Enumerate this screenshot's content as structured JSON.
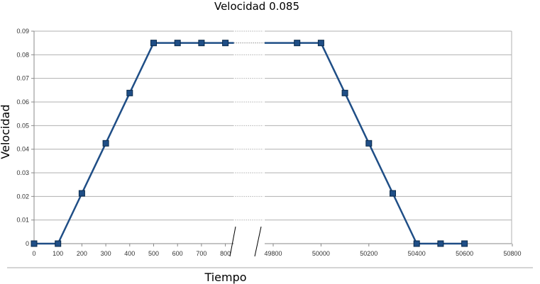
{
  "chart_data": {
    "type": "line",
    "title": "Velocidad 0.085",
    "xlabel": "Tiempo",
    "ylabel": "Velocidad",
    "ylim": [
      0,
      0.09
    ],
    "y_ticks": [
      "0",
      "0.01",
      "0.02",
      "0.03",
      "0.04",
      "0.05",
      "0.06",
      "0.07",
      "0.08",
      "0.09"
    ],
    "x_ticks": [
      "0",
      "100",
      "200",
      "300",
      "400",
      "500",
      "600",
      "700",
      "800",
      "49800",
      "50000",
      "50200",
      "50400",
      "50600",
      "50800"
    ],
    "x_axis_break": "between 800 and 49800",
    "grid": true,
    "colors": {
      "line": "#1f4e86",
      "marker": "#1f4e86",
      "grid": "#b0b0b0"
    },
    "series": [
      {
        "x": [
          0,
          100,
          200,
          300,
          400,
          500,
          600,
          700,
          800,
          49900,
          50000,
          50100,
          50200,
          50300,
          50400,
          50500,
          50600
        ],
        "values": [
          0,
          0,
          0.0213,
          0.0425,
          0.0638,
          0.085,
          0.085,
          0.085,
          0.085,
          0.085,
          0.085,
          0.0638,
          0.0425,
          0.0213,
          0,
          0,
          0
        ]
      }
    ]
  }
}
